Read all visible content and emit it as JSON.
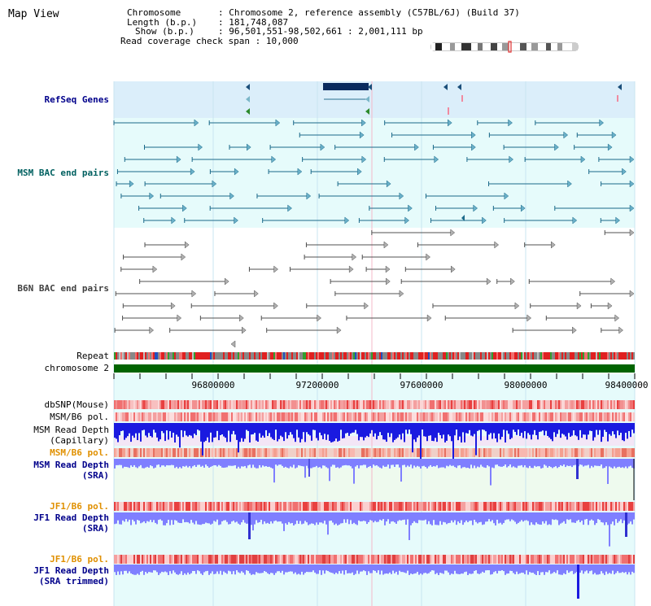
{
  "header": {
    "app_title": "Map View",
    "chromosome_label": "Chromosome",
    "chromosome_value": "Chromosome 2, reference assembly (C57BL/6J) (Build 37)",
    "length_label": "Length (b.p.)",
    "length_value": "181,748,087",
    "show_label": "Show (b.p.)",
    "show_value": "96,501,551-98,502,661 : 2,001,111 bp",
    "coverage_label": "Read coverage check span",
    "coverage_value": "10,000"
  },
  "ideogram": {
    "highlight_color": "#e03030"
  },
  "tracks": {
    "refseq": "RefSeq Genes",
    "msm_bac": "MSM BAC end pairs",
    "b6n_bac": "B6N BAC end pairs",
    "repeat": "Repeat",
    "chromosome": "chromosome 2",
    "dbsnp": "dbSNP(Mouse)",
    "msm_b6_pol_1": "MSM/B6 pol.",
    "msm_read_depth_cap_1": "MSM Read Depth",
    "msm_read_depth_cap_2": "(Capillary)",
    "msm_b6_pol_2": "MSM/B6 pol.",
    "msm_read_depth_sra_1": "MSM Read Depth",
    "msm_read_depth_sra_2": "(SRA)",
    "jf1_b6_pol_1": "JF1/B6 pol.",
    "jf1_read_depth_sra_1": "JF1 Read Depth",
    "jf1_read_depth_sra_2": "(SRA)",
    "jf1_b6_pol_2": "JF1/B6 pol.",
    "jf1_read_depth_trim_1": "JF1 Read Depth",
    "jf1_read_depth_trim_2": "(SRA trimmed)"
  },
  "axis": {
    "ticks": [
      "96800000",
      "97200000",
      "97600000",
      "98000000",
      "98400000"
    ]
  },
  "colors": {
    "refseq_bg": "#dbeefa",
    "msm_bg": "#e6fbfb",
    "read_depth_blue": "#1a1ae0",
    "read_depth_sra": "#7f7fff",
    "orange_label": "#e09000",
    "navy_label": "#00008b",
    "chromosome_green": "#006400"
  }
}
